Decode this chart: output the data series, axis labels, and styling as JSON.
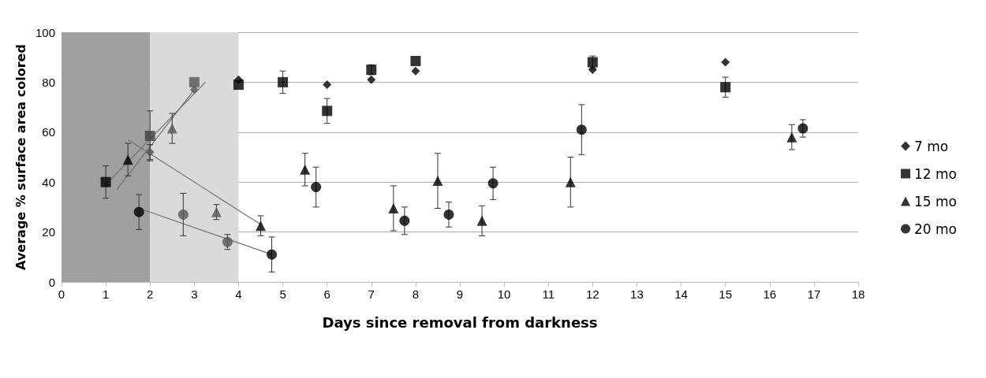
{
  "chart_data": {
    "type": "scatter",
    "xlabel": "Days since removal from darkness",
    "ylabel": "Average % surface area colored",
    "xlim": [
      0,
      18
    ],
    "xticks": [
      0,
      1,
      2,
      3,
      4,
      5,
      6,
      7,
      8,
      9,
      10,
      11,
      12,
      13,
      14,
      15,
      16,
      17,
      18
    ],
    "ylim": [
      0,
      100
    ],
    "yticks": [
      0,
      20,
      40,
      60,
      80,
      100
    ],
    "grid": "y",
    "legend": "right",
    "bands": [
      {
        "axis": "x",
        "from": 0,
        "to": 2,
        "color": "#a0a0a0"
      },
      {
        "axis": "x",
        "from": 2,
        "to": 4,
        "color": "#dadada"
      }
    ],
    "series": [
      {
        "name": "7 mo",
        "color": "#000000",
        "marker": "diamond",
        "x": [
          2,
          3,
          4,
          6,
          7,
          8,
          12,
          15
        ],
        "values": [
          52,
          77,
          81,
          79,
          81,
          84.5,
          85,
          88
        ],
        "errors": [
          3,
          null,
          null,
          null,
          null,
          null,
          null,
          null
        ],
        "colors": [
          "#555555",
          "#555555",
          "#000000",
          "#000000",
          "#000000",
          "#000000",
          "#000000",
          "#000000"
        ]
      },
      {
        "name": "12 mo",
        "color": "#000000",
        "marker": "square",
        "x": [
          1,
          2,
          3,
          4,
          5,
          6,
          7,
          8,
          12,
          15
        ],
        "values": [
          40,
          58.5,
          80,
          79,
          80,
          68.5,
          85,
          88.5,
          88,
          78
        ],
        "errors": [
          6.5,
          10,
          null,
          null,
          4.5,
          5,
          2,
          null,
          2.5,
          4
        ],
        "colors": [
          "#000000",
          "#404040",
          "#555555",
          "#000000",
          "#000000",
          "#000000",
          "#000000",
          "#000000",
          "#000000",
          "#000000"
        ]
      },
      {
        "name": "15 mo",
        "color": "#000000",
        "marker": "triangle",
        "x": [
          1.5,
          2.5,
          3.5,
          4.5,
          5.5,
          7.5,
          8.5,
          9.5,
          11.5,
          16.5
        ],
        "values": [
          49,
          61.5,
          28,
          22.5,
          45,
          29.5,
          40.5,
          24.5,
          40,
          58
        ],
        "errors": [
          6.5,
          6,
          3,
          4,
          6.5,
          9,
          11,
          6,
          10,
          5
        ],
        "colors": [
          "#000000",
          "#555555",
          "#555555",
          "#000000",
          "#000000",
          "#000000",
          "#000000",
          "#000000",
          "#000000",
          "#000000"
        ]
      },
      {
        "name": "20 mo",
        "color": "#000000",
        "marker": "circle",
        "x": [
          1.75,
          2.75,
          3.75,
          4.75,
          5.75,
          7.75,
          8.75,
          9.75,
          11.75,
          16.75
        ],
        "values": [
          28,
          27,
          16,
          11,
          38,
          24.5,
          27,
          39.5,
          61,
          61.5
        ],
        "errors": [
          7,
          8.5,
          3,
          7,
          8,
          5.5,
          5,
          6.5,
          10,
          3.5
        ],
        "colors": [
          "#000000",
          "#555555",
          "#555555",
          "#000000",
          "#000000",
          "#000000",
          "#000000",
          "#000000",
          "#000000",
          "#000000"
        ]
      },
      {
        "type": "line",
        "color": "#707070",
        "marker": "none",
        "x": [
          1.25,
          3
        ],
        "values": [
          37,
          77
        ]
      },
      {
        "type": "line",
        "color": "#707070",
        "marker": "none",
        "x": [
          1,
          3.25
        ],
        "values": [
          39,
          80
        ]
      },
      {
        "type": "line",
        "color": "#707070",
        "marker": "none",
        "x": [
          1.5,
          4.5
        ],
        "values": [
          57,
          23
        ]
      },
      {
        "type": "line",
        "color": "#707070",
        "marker": "none",
        "x": [
          1.75,
          4.75
        ],
        "values": [
          29.5,
          11
        ]
      }
    ]
  }
}
